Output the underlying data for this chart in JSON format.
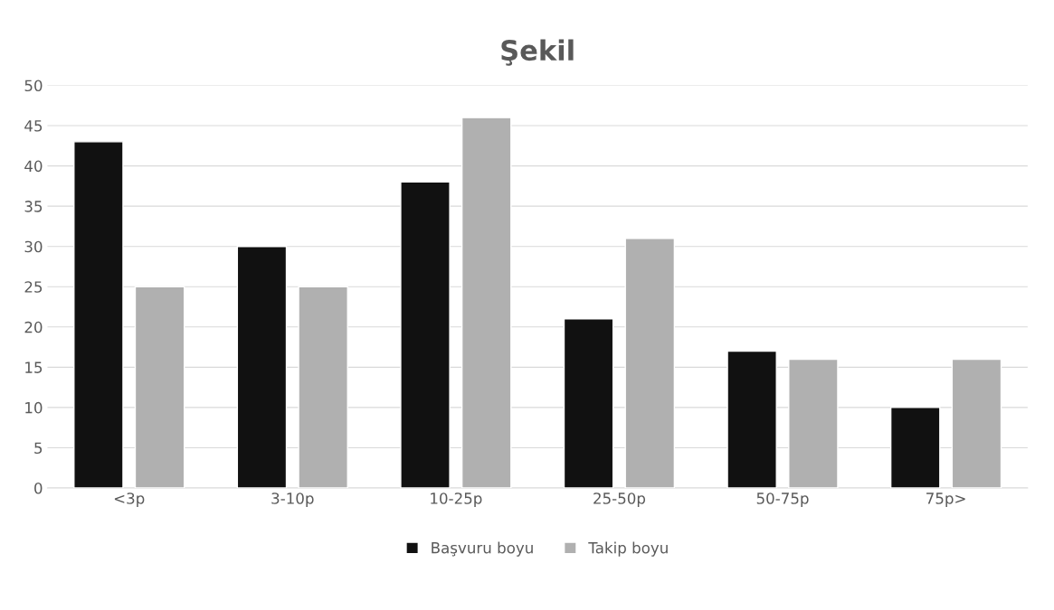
{
  "chart_data": {
    "type": "bar",
    "title": "Şekil",
    "categories": [
      "<3p",
      "3-10p",
      "10-25p",
      "25-50p",
      "50-75p",
      "75p>"
    ],
    "series": [
      {
        "name": "Başvuru boyu",
        "color": "#111111",
        "values": [
          43,
          30,
          38,
          21,
          17,
          10
        ]
      },
      {
        "name": "Takip boyu",
        "color": "#b0b0b0",
        "values": [
          25,
          25,
          46,
          31,
          16,
          16
        ]
      }
    ],
    "ylim": [
      0,
      50
    ],
    "yticks": [
      0,
      5,
      10,
      15,
      20,
      25,
      30,
      35,
      40,
      45,
      50
    ],
    "grid": "y",
    "legend": "bottom"
  }
}
